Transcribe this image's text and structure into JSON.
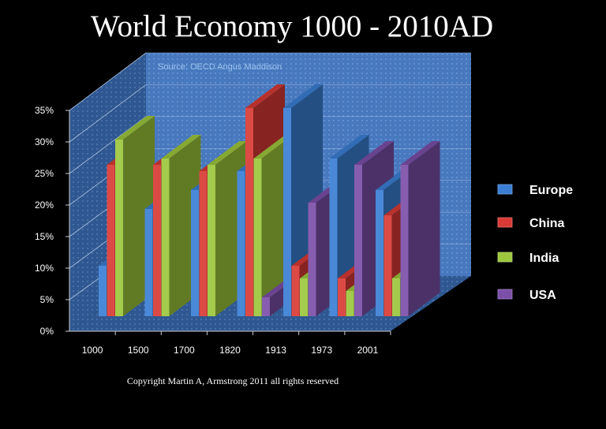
{
  "chart_data": {
    "type": "bar",
    "title": "World Economy  1000 - 2010AD",
    "subtitle": "Source: OECD Angus Maddison",
    "footer": "Copyright Martin A, Armstrong 2011 all rights reserved",
    "categories": [
      "1000",
      "1500",
      "1700",
      "1820",
      "1913",
      "1973",
      "2001"
    ],
    "ylim": [
      0,
      35
    ],
    "yticks": [
      "0%",
      "5%",
      "10%",
      "15%",
      "20%",
      "25%",
      "30%",
      "35%"
    ],
    "grid": true,
    "three_d": true,
    "legend_position": "right",
    "series": [
      {
        "name": "Europe",
        "color": "#3a7fd4",
        "values": [
          8,
          17,
          20,
          23,
          33,
          25,
          20
        ]
      },
      {
        "name": "China",
        "color": "#d93a35",
        "values": [
          24,
          24,
          23,
          33,
          8,
          6,
          16
        ]
      },
      {
        "name": "India",
        "color": "#9cc73c",
        "values": [
          28,
          25,
          24,
          25,
          6,
          4,
          6
        ]
      },
      {
        "name": "USA",
        "color": "#7b4fa8",
        "values": [
          0,
          0,
          0,
          3,
          18,
          24,
          24
        ]
      }
    ]
  }
}
